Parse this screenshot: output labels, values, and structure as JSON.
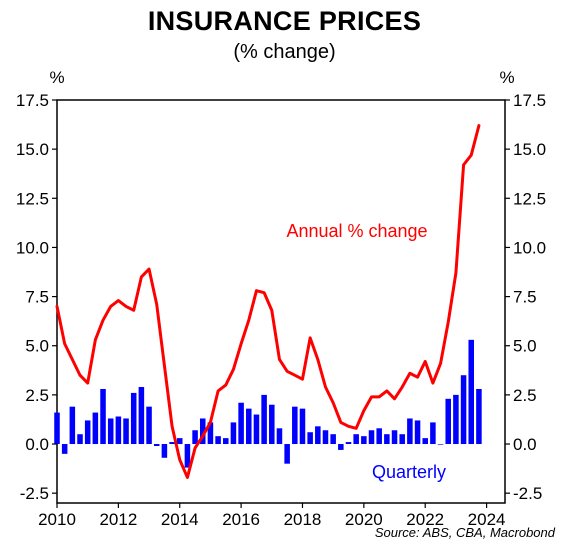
{
  "title": "INSURANCE PRICES",
  "subtitle": "(% change)",
  "source": "Source: ABS, CBA, Macrobond",
  "chart_data": {
    "type": "bar",
    "title": "INSURANCE PRICES",
    "subtitle": "(% change)",
    "y_unit_left": "%",
    "y_unit_right": "%",
    "xlim": [
      2010.0,
      2024.6
    ],
    "ylim": [
      -3.0,
      17.5
    ],
    "y_ticks": [
      -2.5,
      0.0,
      2.5,
      5.0,
      7.5,
      10.0,
      12.5,
      15.0,
      17.5
    ],
    "y_tick_labels": [
      "-2.5",
      "0.0",
      "2.5",
      "5.0",
      "7.5",
      "10.0",
      "12.5",
      "15.0",
      "17.5"
    ],
    "x_ticks": [
      2010,
      2012,
      2014,
      2016,
      2018,
      2020,
      2022,
      2024
    ],
    "x_tick_labels": [
      "2010",
      "2012",
      "2014",
      "2016",
      "2018",
      "2020",
      "2022",
      "2024"
    ],
    "grid": false,
    "series": [
      {
        "name": "Quarterly",
        "type": "bar",
        "color": "#0000ff",
        "x": [
          2010.0,
          2010.25,
          2010.5,
          2010.75,
          2011.0,
          2011.25,
          2011.5,
          2011.75,
          2012.0,
          2012.25,
          2012.5,
          2012.75,
          2013.0,
          2013.25,
          2013.5,
          2013.75,
          2014.0,
          2014.25,
          2014.5,
          2014.75,
          2015.0,
          2015.25,
          2015.5,
          2015.75,
          2016.0,
          2016.25,
          2016.5,
          2016.75,
          2017.0,
          2017.25,
          2017.5,
          2017.75,
          2018.0,
          2018.25,
          2018.5,
          2018.75,
          2019.0,
          2019.25,
          2019.5,
          2019.75,
          2020.0,
          2020.25,
          2020.5,
          2020.75,
          2021.0,
          2021.25,
          2021.5,
          2021.75,
          2022.0,
          2022.25,
          2022.5,
          2022.75,
          2023.0,
          2023.25,
          2023.5,
          2023.75
        ],
        "values": [
          1.6,
          -0.5,
          1.9,
          0.5,
          1.2,
          1.6,
          2.8,
          1.3,
          1.4,
          1.3,
          2.6,
          2.9,
          1.9,
          -0.1,
          -0.7,
          0.1,
          0.3,
          -1.2,
          0.7,
          1.3,
          1.1,
          0.4,
          0.3,
          1.1,
          2.1,
          1.8,
          1.5,
          2.5,
          2.0,
          0.8,
          -1.0,
          1.9,
          1.8,
          0.6,
          0.9,
          0.7,
          0.5,
          -0.3,
          0.1,
          0.5,
          0.4,
          0.7,
          0.8,
          0.5,
          0.7,
          0.5,
          1.3,
          1.2,
          0.3,
          1.1,
          0.0,
          2.3,
          2.5,
          3.5,
          5.3,
          2.8
        ],
        "label": "Quarterly"
      },
      {
        "name": "Annual % change",
        "type": "line",
        "color": "#ff0000",
        "x": [
          2010.0,
          2010.25,
          2010.5,
          2010.75,
          2011.0,
          2011.25,
          2011.5,
          2011.75,
          2012.0,
          2012.25,
          2012.5,
          2012.75,
          2013.0,
          2013.25,
          2013.5,
          2013.75,
          2014.0,
          2014.25,
          2014.5,
          2014.75,
          2015.0,
          2015.25,
          2015.5,
          2015.75,
          2016.0,
          2016.25,
          2016.5,
          2016.75,
          2017.0,
          2017.25,
          2017.5,
          2017.75,
          2018.0,
          2018.25,
          2018.5,
          2018.75,
          2019.0,
          2019.25,
          2019.5,
          2019.75,
          2020.0,
          2020.25,
          2020.5,
          2020.75,
          2021.0,
          2021.25,
          2021.5,
          2021.75,
          2022.0,
          2022.25,
          2022.5,
          2022.75,
          2023.0,
          2023.25,
          2023.5,
          2023.75
        ],
        "values": [
          7.0,
          5.1,
          4.3,
          3.5,
          3.1,
          5.3,
          6.3,
          7.0,
          7.3,
          7.0,
          6.8,
          8.5,
          8.9,
          7.1,
          4.0,
          0.9,
          -0.8,
          -1.7,
          -0.2,
          0.4,
          1.1,
          2.7,
          3.0,
          3.8,
          5.1,
          6.3,
          7.8,
          7.7,
          6.8,
          4.3,
          3.7,
          3.5,
          3.3,
          5.4,
          4.3,
          2.9,
          2.1,
          1.1,
          0.9,
          0.8,
          1.7,
          2.4,
          2.4,
          2.7,
          2.3,
          2.9,
          3.6,
          3.4,
          4.2,
          3.1,
          4.1,
          6.2,
          8.7,
          14.2,
          14.7,
          16.2
        ],
        "label": "Annual % change"
      }
    ]
  }
}
